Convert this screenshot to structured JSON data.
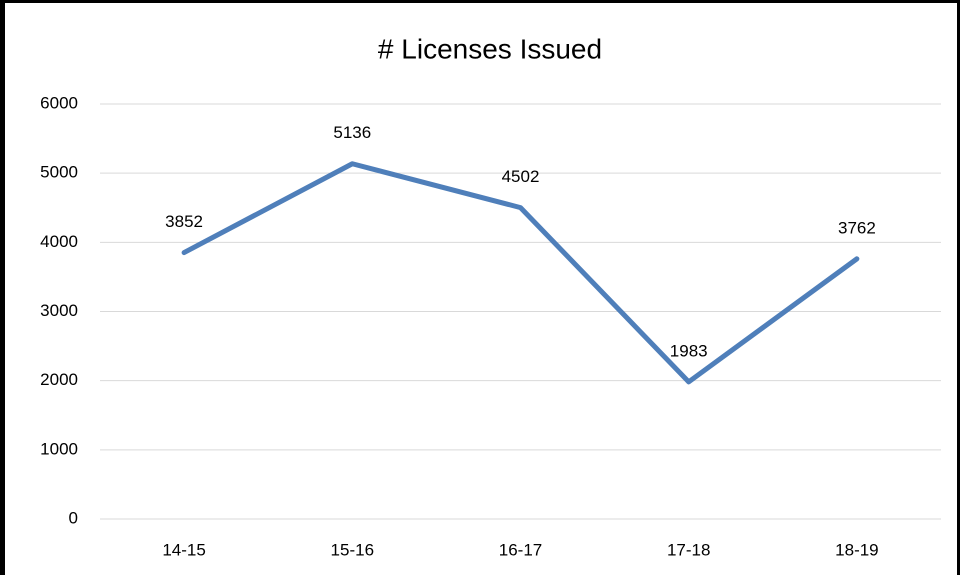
{
  "chart_data": {
    "type": "line",
    "title": "# Licenses Issued",
    "categories": [
      "14-15",
      "15-16",
      "16-17",
      "17-18",
      "18-19"
    ],
    "series": [
      {
        "name": "# Licenses Issued",
        "color": "#4f7fba",
        "values": [
          3852,
          5136,
          4502,
          1983,
          3762
        ]
      }
    ],
    "ylim": [
      0,
      6000
    ],
    "yticks": [
      0,
      1000,
      2000,
      3000,
      4000,
      5000,
      6000
    ],
    "grid": true,
    "data_labels": true
  }
}
